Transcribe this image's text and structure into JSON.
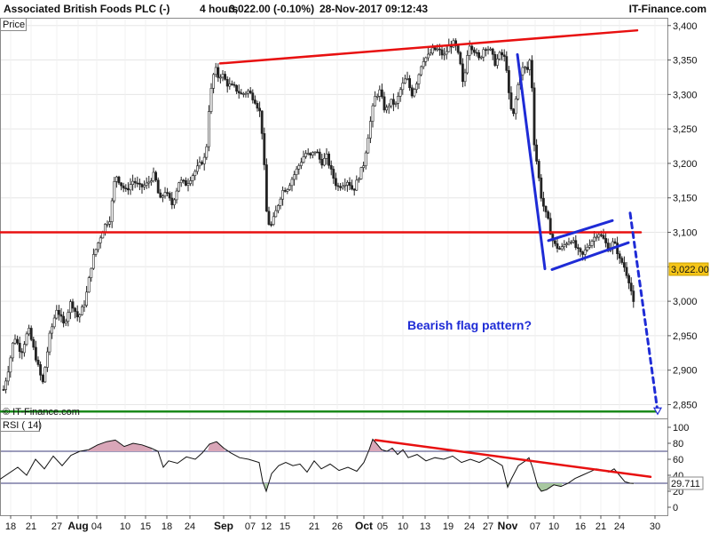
{
  "header": {
    "title": "Associated British Foods PLC (-)",
    "timeframe": "4 hours",
    "last": "3,022.00 (-0.10%)",
    "datetime": "28-Nov-2017 09:12:43",
    "brand": "IT-Finance.com"
  },
  "price_panel": {
    "label": "Price",
    "copyright": "© IT-Finance.com",
    "last_price_badge": "3,022.00",
    "annotation": "Bearish flag pattern?"
  },
  "rsi_panel": {
    "label": "RSI ( 14)",
    "value_badge": "29.711"
  },
  "colors": {
    "trendline": "#e81010",
    "flag": "#1e2bd6",
    "target": "#1a8a1a",
    "badge": "#f5c518",
    "candle": "#222222"
  },
  "chart_data": [
    {
      "type": "candlestick",
      "title": "Associated British Foods PLC (-)",
      "x_ticks": [
        "18",
        "21",
        "27",
        "Aug",
        "04",
        "10",
        "15",
        "18",
        "24",
        "Sep",
        "07",
        "12",
        "15",
        "21",
        "26",
        "Oct",
        "05",
        "10",
        "13",
        "19",
        "24",
        "27",
        "Nov",
        "07",
        "10",
        "16",
        "21",
        "24",
        "30"
      ],
      "month_ticks": [
        "Aug",
        "Sep",
        "Oct",
        "Nov"
      ],
      "ylabel": "Price",
      "ylim": [
        2830,
        3410
      ],
      "y_ticks": [
        2850,
        2900,
        2950,
        3000,
        3050,
        3100,
        3150,
        3200,
        3250,
        3300,
        3350,
        3400
      ],
      "y_tick_labels": [
        "2,850",
        "2,900",
        "2,950",
        "3,000",
        "3,050",
        "3,100",
        "3,150",
        "3,200",
        "3,250",
        "3,300",
        "3,350",
        "3,400"
      ],
      "close_path": [
        [
          0,
          2850
        ],
        [
          10,
          2905
        ],
        [
          16,
          2950
        ],
        [
          24,
          2925
        ],
        [
          32,
          2960
        ],
        [
          40,
          2920
        ],
        [
          48,
          2880
        ],
        [
          56,
          2950
        ],
        [
          64,
          2990
        ],
        [
          72,
          2965
        ],
        [
          80,
          3000
        ],
        [
          88,
          2975
        ],
        [
          96,
          3000
        ],
        [
          104,
          3060
        ],
        [
          112,
          3090
        ],
        [
          118,
          3110
        ],
        [
          124,
          3120
        ],
        [
          130,
          3185
        ],
        [
          136,
          3170
        ],
        [
          142,
          3160
        ],
        [
          150,
          3175
        ],
        [
          158,
          3165
        ],
        [
          166,
          3170
        ],
        [
          174,
          3185
        ],
        [
          180,
          3145
        ],
        [
          186,
          3160
        ],
        [
          194,
          3140
        ],
        [
          202,
          3175
        ],
        [
          210,
          3170
        ],
        [
          218,
          3185
        ],
        [
          226,
          3200
        ],
        [
          232,
          3210
        ],
        [
          236,
          3290
        ],
        [
          242,
          3340
        ],
        [
          246,
          3325
        ],
        [
          250,
          3330
        ],
        [
          256,
          3315
        ],
        [
          264,
          3310
        ],
        [
          272,
          3300
        ],
        [
          280,
          3305
        ],
        [
          288,
          3290
        ],
        [
          294,
          3270
        ],
        [
          298,
          3190
        ],
        [
          301,
          3115
        ],
        [
          306,
          3110
        ],
        [
          312,
          3135
        ],
        [
          318,
          3160
        ],
        [
          324,
          3165
        ],
        [
          330,
          3180
        ],
        [
          336,
          3195
        ],
        [
          344,
          3215
        ],
        [
          350,
          3210
        ],
        [
          356,
          3220
        ],
        [
          362,
          3200
        ],
        [
          368,
          3210
        ],
        [
          374,
          3185
        ],
        [
          380,
          3165
        ],
        [
          386,
          3170
        ],
        [
          392,
          3175
        ],
        [
          398,
          3160
        ],
        [
          404,
          3180
        ],
        [
          410,
          3200
        ],
        [
          416,
          3250
        ],
        [
          422,
          3295
        ],
        [
          428,
          3305
        ],
        [
          434,
          3275
        ],
        [
          440,
          3290
        ],
        [
          446,
          3285
        ],
        [
          452,
          3310
        ],
        [
          458,
          3325
        ],
        [
          464,
          3300
        ],
        [
          470,
          3320
        ],
        [
          476,
          3350
        ],
        [
          482,
          3355
        ],
        [
          488,
          3365
        ],
        [
          494,
          3365
        ],
        [
          500,
          3355
        ],
        [
          506,
          3370
        ],
        [
          512,
          3375
        ],
        [
          518,
          3350
        ],
        [
          522,
          3310
        ],
        [
          528,
          3375
        ],
        [
          534,
          3365
        ],
        [
          540,
          3350
        ],
        [
          546,
          3370
        ],
        [
          552,
          3365
        ],
        [
          558,
          3345
        ],
        [
          564,
          3360
        ],
        [
          570,
          3350
        ],
        [
          574,
          3290
        ],
        [
          578,
          3265
        ],
        [
          582,
          3300
        ],
        [
          586,
          3330
        ],
        [
          590,
          3340
        ],
        [
          594,
          3335
        ],
        [
          598,
          3355
        ],
        [
          602,
          3230
        ],
        [
          606,
          3190
        ],
        [
          610,
          3150
        ],
        [
          614,
          3130
        ],
        [
          618,
          3115
        ],
        [
          622,
          3090
        ],
        [
          626,
          3080
        ],
        [
          632,
          3075
        ],
        [
          638,
          3085
        ],
        [
          644,
          3090
        ],
        [
          650,
          3075
        ],
        [
          656,
          3065
        ],
        [
          662,
          3080
        ],
        [
          668,
          3090
        ],
        [
          674,
          3100
        ],
        [
          680,
          3090
        ],
        [
          686,
          3075
        ],
        [
          690,
          3085
        ],
        [
          694,
          3080
        ],
        [
          698,
          3060
        ],
        [
          702,
          3055
        ],
        [
          706,
          3040
        ],
        [
          710,
          3025
        ],
        [
          713,
          3000
        ],
        [
          715,
          2990
        ]
      ],
      "lines": [
        {
          "name": "upper_resistance",
          "color": "#e81010",
          "points": [
            [
              248,
              3345
            ],
            [
              718,
              3393
            ]
          ]
        },
        {
          "name": "horizontal_support",
          "color": "#e81010",
          "points": [
            [
              0,
              3100
            ],
            [
              722,
              3100
            ]
          ]
        },
        {
          "name": "target_support",
          "color": "#1a8a1a",
          "points": [
            [
              0,
              2840
            ],
            [
              740,
              2840
            ]
          ]
        },
        {
          "name": "flagpole",
          "color": "#1e2bd6",
          "points": [
            [
              583,
              3358
            ],
            [
              614,
              3047
            ]
          ]
        },
        {
          "name": "flag_upper",
          "color": "#1e2bd6",
          "points": [
            [
              618,
              3088
            ],
            [
              690,
              3117
            ]
          ]
        },
        {
          "name": "flag_lower",
          "color": "#1e2bd6",
          "points": [
            [
              622,
              3046
            ],
            [
              708,
              3085
            ]
          ]
        },
        {
          "name": "projected_move",
          "color": "#1e2bd6",
          "dashed": true,
          "points": [
            [
              710,
              3128
            ],
            [
              741,
              2840
            ]
          ]
        }
      ],
      "markers": [
        {
          "name": "target_marker",
          "x": 741,
          "y": 2840
        }
      ]
    },
    {
      "type": "line",
      "title": "RSI ( 14)",
      "ylim": [
        -10,
        110
      ],
      "y_ticks": [
        0,
        20,
        40,
        60,
        80,
        100
      ],
      "guide_levels": [
        70,
        30
      ],
      "values": [
        [
          0,
          35
        ],
        [
          20,
          50
        ],
        [
          30,
          40
        ],
        [
          40,
          60
        ],
        [
          50,
          48
        ],
        [
          60,
          64
        ],
        [
          70,
          52
        ],
        [
          80,
          65
        ],
        [
          90,
          70
        ],
        [
          100,
          72
        ],
        [
          110,
          78
        ],
        [
          120,
          82
        ],
        [
          130,
          84
        ],
        [
          140,
          76
        ],
        [
          150,
          80
        ],
        [
          160,
          78
        ],
        [
          170,
          74
        ],
        [
          178,
          70
        ],
        [
          184,
          50
        ],
        [
          190,
          58
        ],
        [
          200,
          55
        ],
        [
          210,
          63
        ],
        [
          220,
          60
        ],
        [
          228,
          68
        ],
        [
          236,
          79
        ],
        [
          244,
          82
        ],
        [
          252,
          74
        ],
        [
          260,
          68
        ],
        [
          270,
          62
        ],
        [
          280,
          60
        ],
        [
          292,
          56
        ],
        [
          296,
          32
        ],
        [
          300,
          20
        ],
        [
          306,
          42
        ],
        [
          314,
          52
        ],
        [
          322,
          56
        ],
        [
          330,
          52
        ],
        [
          338,
          54
        ],
        [
          346,
          44
        ],
        [
          354,
          58
        ],
        [
          362,
          48
        ],
        [
          372,
          54
        ],
        [
          382,
          46
        ],
        [
          392,
          50
        ],
        [
          402,
          45
        ],
        [
          410,
          56
        ],
        [
          416,
          72
        ],
        [
          420,
          85
        ],
        [
          424,
          80
        ],
        [
          430,
          72
        ],
        [
          436,
          70
        ],
        [
          442,
          74
        ],
        [
          448,
          66
        ],
        [
          454,
          72
        ],
        [
          460,
          62
        ],
        [
          470,
          66
        ],
        [
          480,
          58
        ],
        [
          490,
          62
        ],
        [
          500,
          60
        ],
        [
          510,
          64
        ],
        [
          520,
          56
        ],
        [
          530,
          60
        ],
        [
          540,
          56
        ],
        [
          550,
          62
        ],
        [
          560,
          56
        ],
        [
          566,
          52
        ],
        [
          572,
          25
        ],
        [
          576,
          35
        ],
        [
          584,
          52
        ],
        [
          592,
          58
        ],
        [
          596,
          62
        ],
        [
          600,
          50
        ],
        [
          606,
          26
        ],
        [
          610,
          20
        ],
        [
          616,
          22
        ],
        [
          624,
          28
        ],
        [
          632,
          26
        ],
        [
          640,
          30
        ],
        [
          648,
          36
        ],
        [
          656,
          40
        ],
        [
          664,
          44
        ],
        [
          672,
          48
        ],
        [
          680,
          46
        ],
        [
          686,
          44
        ],
        [
          692,
          48
        ],
        [
          698,
          40
        ],
        [
          704,
          32
        ],
        [
          710,
          30
        ],
        [
          714,
          29.7
        ]
      ],
      "lines": [
        {
          "name": "rsi_resistance",
          "color": "#e81010",
          "points": [
            [
              423,
              84
            ],
            [
              733,
              38
            ]
          ]
        }
      ]
    }
  ]
}
